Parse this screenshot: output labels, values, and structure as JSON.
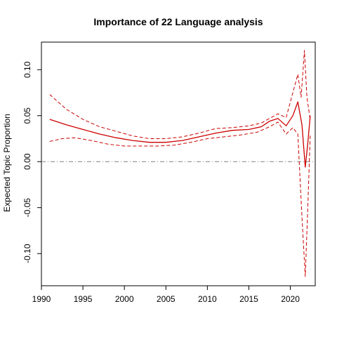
{
  "chart_data": {
    "type": "line",
    "title": "Importance of 22 Language analysis",
    "xlabel": "",
    "ylabel": "Expected Topic Proportion",
    "xlim": [
      1990,
      2023
    ],
    "ylim": [
      -0.135,
      0.13
    ],
    "x_ticks": [
      1990,
      1995,
      2000,
      2005,
      2010,
      2015,
      2020
    ],
    "y_ticks": [
      -0.1,
      -0.05,
      0.0,
      0.05,
      0.1
    ],
    "y_tick_labels": [
      "-0.10",
      "-0.05",
      "0.00",
      "0.05",
      "0.10"
    ],
    "zero_line": {
      "y": 0,
      "style": "dashdot",
      "color": "#808080"
    },
    "grid": false,
    "series": [
      {
        "style": "solid",
        "color": "#cc0000",
        "x": [
          1991,
          1993,
          1995,
          1997,
          1999,
          2001,
          2003,
          2005,
          2007,
          2009,
          2011,
          2013,
          2015,
          2016.5,
          2017.5,
          2018.5,
          2019.5,
          2020.3,
          2020.9,
          2021.4,
          2021.8,
          2022.1,
          2022.4
        ],
        "y": [
          0.046,
          0.04,
          0.035,
          0.03,
          0.026,
          0.023,
          0.021,
          0.021,
          0.023,
          0.027,
          0.031,
          0.034,
          0.035,
          0.038,
          0.044,
          0.047,
          0.039,
          0.05,
          0.065,
          0.04,
          -0.006,
          0.02,
          0.05
        ]
      },
      {
        "style": "dashed",
        "color": "#cc0000",
        "x": [
          1991,
          1993,
          1995,
          1997,
          1999,
          2001,
          2003,
          2005,
          2007,
          2009,
          2011,
          2013,
          2015,
          2016.5,
          2017.5,
          2018.5,
          2019.5,
          2020.3,
          2020.9,
          2021.3,
          2021.7,
          2022.0,
          2022.4
        ],
        "y": [
          0.073,
          0.057,
          0.046,
          0.038,
          0.033,
          0.028,
          0.025,
          0.025,
          0.027,
          0.031,
          0.036,
          0.037,
          0.039,
          0.042,
          0.047,
          0.052,
          0.048,
          0.075,
          0.095,
          0.07,
          0.121,
          0.07,
          0.045
        ]
      },
      {
        "style": "dashed",
        "color": "#cc0000",
        "x": [
          1991,
          1992.5,
          1994,
          1996,
          1998,
          2000,
          2002,
          2004,
          2006,
          2008,
          2010,
          2012,
          2014,
          2016,
          2017.5,
          2018.5,
          2019.5,
          2020.3,
          2020.9,
          2021.4,
          2021.8,
          2022.1,
          2022.4
        ],
        "y": [
          0.022,
          0.025,
          0.026,
          0.023,
          0.019,
          0.017,
          0.017,
          0.017,
          0.018,
          0.021,
          0.025,
          0.027,
          0.029,
          0.032,
          0.038,
          0.043,
          0.03,
          0.037,
          0.03,
          -0.06,
          -0.125,
          -0.05,
          0.03
        ]
      }
    ]
  }
}
